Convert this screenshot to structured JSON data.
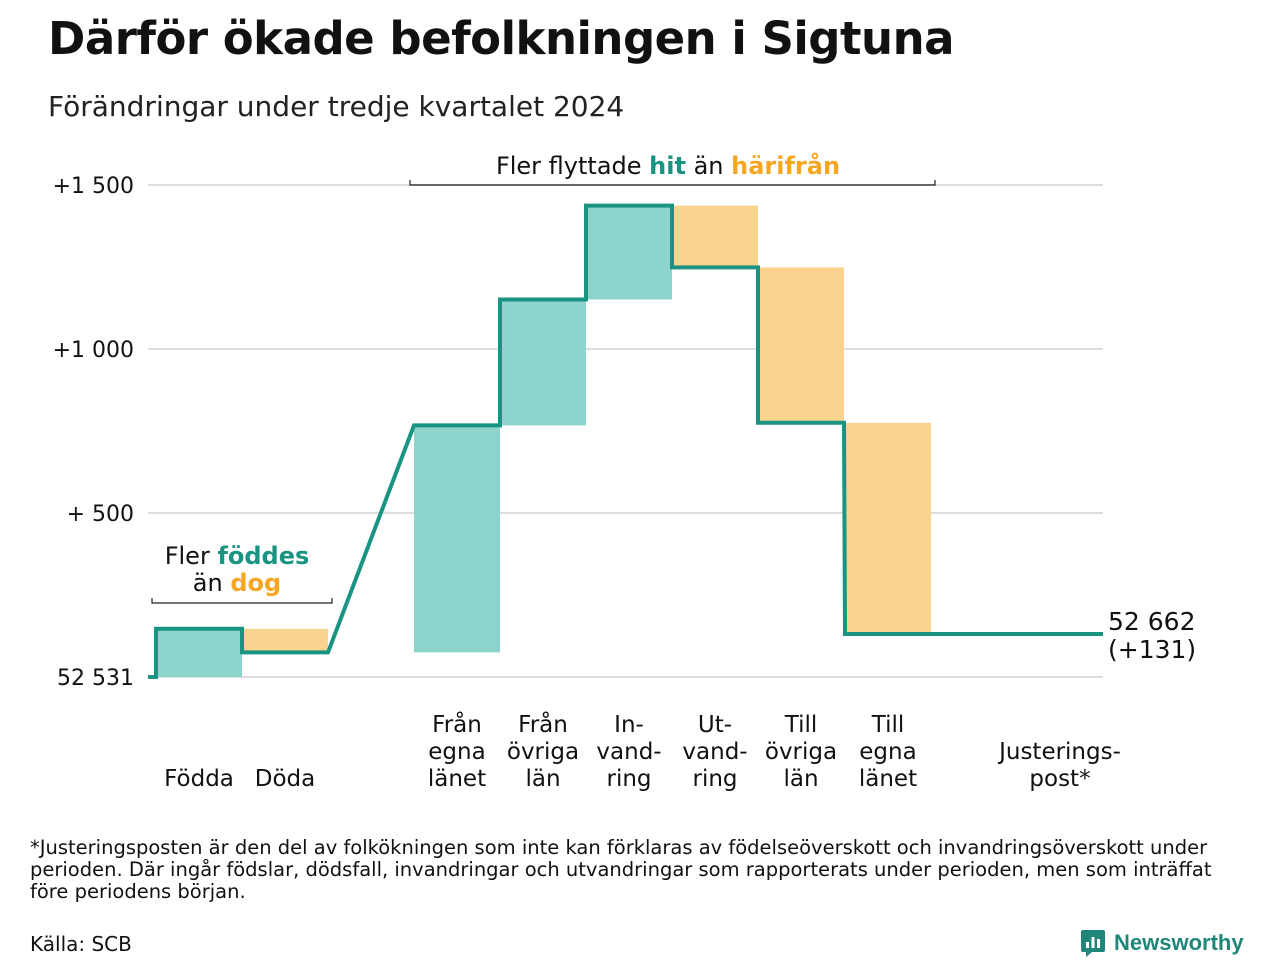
{
  "title": "Därför ökade befolkningen i Sigtuna",
  "subtitle": "Förändringar under tredje kvartalet 2024",
  "colors": {
    "increase": "#8dd5cc",
    "decrease": "#fad48e",
    "line": "#1a9482",
    "accent_teal": "#1a9482",
    "accent_orange": "#f5a623",
    "grid": "#dddddd"
  },
  "chart_data": {
    "type": "waterfall",
    "baseline": 52531,
    "final_value_label": "52 662",
    "final_change_label": "(+131)",
    "y_ticks": [
      {
        "value": 0,
        "label": "52 531"
      },
      {
        "value": 500,
        "label": "+  500"
      },
      {
        "value": 1000,
        "label": "+1 000"
      },
      {
        "value": 1500,
        "label": "+1 500"
      }
    ],
    "ylim": [
      0,
      1500
    ],
    "steps": [
      {
        "lines": [
          "Födda"
        ],
        "change": 147
      },
      {
        "lines": [
          "Döda"
        ],
        "change": -72
      },
      {
        "lines": [
          "Från",
          "egna",
          "länet"
        ],
        "change": 692
      },
      {
        "lines": [
          "Från",
          "övriga",
          "län"
        ],
        "change": 384
      },
      {
        "lines": [
          "In-",
          "vand-",
          "ring"
        ],
        "change": 286
      },
      {
        "lines": [
          "Ut-",
          "vand-",
          "ring"
        ],
        "change": -188
      },
      {
        "lines": [
          "Till",
          "övriga",
          "län"
        ],
        "change": -474
      },
      {
        "lines": [
          "Till",
          "egna",
          "länet"
        ],
        "change": -644
      },
      {
        "lines": [
          "Justerings-",
          "post*"
        ],
        "change": 0
      }
    ],
    "annotations": {
      "births": {
        "part1": "Fler ",
        "hl1": "föddes",
        "part2": "än ",
        "hl2": "dog"
      },
      "migration": {
        "part1": "Fler flyttade ",
        "hl1": "hit",
        "part2": " än ",
        "hl2": "härifrån"
      }
    }
  },
  "footnote": "*Justeringsposten är den del av folkökningen som inte kan förklaras av födelseöverskott och invandringsöverskott under perioden. Där ingår födslar, dödsfall, invandringar och utvandringar som rapporterats under perioden, men som inträffat före periodens början.",
  "source": "Källa: SCB",
  "brand": {
    "name": "Newsworthy",
    "logo_icon": "bar-chart-speech-bubble-icon"
  }
}
